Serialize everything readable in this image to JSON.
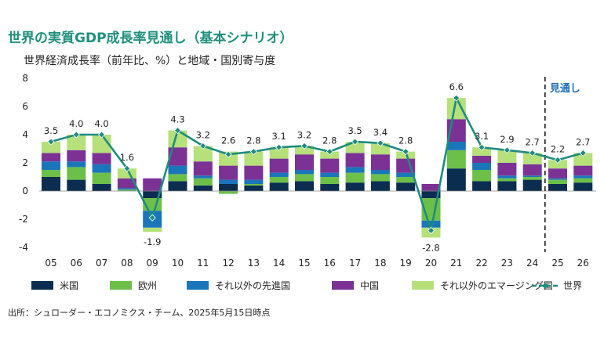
{
  "header": {
    "title": "世界の実質GDP成長率見通し（基本シナリオ）",
    "subtitle": "世界経済成長率（前年比、%）と地域・国別寄与度"
  },
  "footer": {
    "source": "出所：シュローダー・エコノミクス・チーム、2025年5月15日時点"
  },
  "colors": {
    "us": "#0b2d4f",
    "europe": "#6cc04a",
    "other_developed": "#1b75bb",
    "china": "#7b3294",
    "other_emerging": "#b5e07a",
    "world": "#1e8c7e",
    "forecast_line": "#1a1a1a",
    "forecast_label": "#1f6fb5"
  },
  "chart_data": {
    "type": "bar",
    "stacked": true,
    "title": "世界の実質GDP成長率見通し（基本シナリオ）",
    "subtitle": "世界経済成長率（前年比、%）と地域・国別寄与度",
    "ylim": [
      -4,
      8
    ],
    "yticks": [
      "8",
      "6",
      "4",
      "2",
      "0",
      "-2",
      "-4"
    ],
    "categories": [
      "05",
      "06",
      "07",
      "08",
      "09",
      "10",
      "11",
      "12",
      "13",
      "14",
      "15",
      "16",
      "17",
      "18",
      "19",
      "20",
      "21",
      "22",
      "23",
      "24",
      "25",
      "26"
    ],
    "forecast_label": "見通し",
    "forecast_start_index": 20,
    "series": [
      {
        "name": "米国",
        "key": "us",
        "values": [
          1.0,
          0.8,
          0.5,
          0.0,
          -0.5,
          0.7,
          0.4,
          0.5,
          0.4,
          0.6,
          0.7,
          0.5,
          0.6,
          0.7,
          0.6,
          -0.5,
          1.6,
          0.7,
          0.7,
          0.8,
          0.5,
          0.6
        ]
      },
      {
        "name": "欧州",
        "key": "europe",
        "values": [
          0.5,
          0.9,
          0.8,
          0.1,
          -0.9,
          0.5,
          0.5,
          -0.2,
          0.1,
          0.4,
          0.5,
          0.5,
          0.7,
          0.5,
          0.4,
          -1.6,
          1.3,
          0.8,
          0.2,
          0.2,
          0.3,
          0.3
        ]
      },
      {
        "name": "それ以外の先進国",
        "key": "other_developed",
        "values": [
          0.6,
          0.4,
          0.6,
          0.1,
          -1.2,
          0.6,
          0.2,
          0.3,
          0.3,
          0.3,
          0.3,
          0.3,
          0.4,
          0.3,
          0.3,
          -0.5,
          0.6,
          0.5,
          0.2,
          0.1,
          0.1,
          0.2
        ]
      },
      {
        "name": "中国",
        "key": "china",
        "values": [
          0.6,
          0.8,
          0.8,
          0.7,
          0.9,
          1.3,
          1.0,
          1.0,
          1.0,
          1.0,
          1.1,
          1.0,
          1.0,
          1.1,
          1.0,
          0.5,
          1.6,
          0.5,
          0.9,
          0.8,
          0.7,
          0.7
        ]
      },
      {
        "name": "それ以外のエマージング国",
        "key": "other_emerging",
        "values": [
          0.8,
          1.1,
          1.3,
          0.7,
          -0.3,
          1.2,
          1.1,
          1.0,
          1.0,
          0.8,
          0.6,
          0.5,
          0.8,
          0.8,
          0.5,
          -0.7,
          1.5,
          0.6,
          0.9,
          0.8,
          0.6,
          0.9
        ]
      }
    ],
    "world": {
      "name": "世界",
      "values": [
        3.5,
        4.0,
        4.0,
        1.6,
        -1.9,
        4.3,
        3.2,
        2.6,
        2.8,
        3.1,
        3.2,
        2.8,
        3.5,
        3.4,
        2.8,
        -2.8,
        6.6,
        3.1,
        2.9,
        2.7,
        2.2,
        2.7
      ],
      "labels": [
        "3.5",
        "4.0",
        "4.0",
        "1.6",
        "-1.9",
        "4.3",
        "3.2",
        "2.6",
        "2.8",
        "3.1",
        "3.2",
        "2.8",
        "3.5",
        "3.4",
        "2.8",
        "-2.8",
        "6.6",
        "3.1",
        "2.9",
        "2.7",
        "2.2",
        "2.7"
      ]
    },
    "grid": false,
    "legend_position": "bottom"
  }
}
